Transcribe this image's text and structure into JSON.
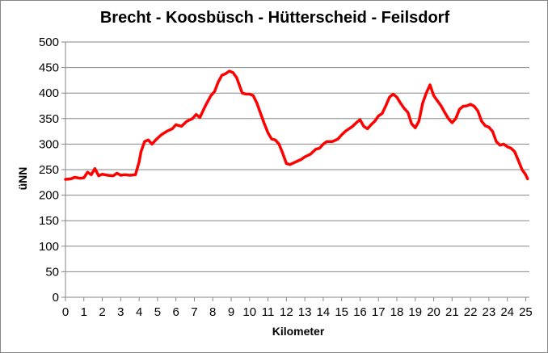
{
  "chart_data": {
    "type": "line",
    "title": "Brecht - Koosbüsch - Hütterscheid - Feilsdorf",
    "xlabel": "Kilometer",
    "ylabel": "üNN",
    "xlim": [
      0,
      25.2
    ],
    "ylim": [
      0,
      500
    ],
    "xticks": [
      0,
      1,
      2,
      3,
      4,
      5,
      6,
      7,
      8,
      9,
      10,
      11,
      12,
      13,
      14,
      15,
      16,
      17,
      18,
      19,
      20,
      21,
      22,
      23,
      24,
      25
    ],
    "yticks": [
      0,
      50,
      100,
      150,
      200,
      250,
      300,
      350,
      400,
      450,
      500
    ],
    "grid": "horizontal",
    "legend": "none",
    "series": [
      {
        "color": "#ff0000",
        "x": [
          0,
          0.3,
          0.5,
          0.8,
          1.0,
          1.2,
          1.4,
          1.6,
          1.8,
          2.0,
          2.3,
          2.6,
          2.8,
          3.0,
          3.2,
          3.5,
          3.8,
          4.0,
          4.1,
          4.3,
          4.5,
          4.7,
          4.9,
          5.2,
          5.5,
          5.8,
          6.0,
          6.3,
          6.6,
          6.9,
          7.1,
          7.3,
          7.6,
          7.9,
          8.1,
          8.3,
          8.5,
          8.7,
          8.9,
          9.1,
          9.3,
          9.6,
          9.8,
          10.0,
          10.2,
          10.4,
          10.6,
          10.8,
          11.0,
          11.2,
          11.4,
          11.6,
          11.8,
          12.0,
          12.2,
          12.5,
          12.8,
          13.0,
          13.3,
          13.6,
          13.8,
          14.0,
          14.2,
          14.5,
          14.8,
          15.0,
          15.2,
          15.4,
          15.6,
          15.8,
          16.0,
          16.2,
          16.4,
          16.6,
          16.8,
          17.0,
          17.2,
          17.4,
          17.6,
          17.8,
          18.0,
          18.2,
          18.4,
          18.6,
          18.8,
          19.0,
          19.2,
          19.4,
          19.6,
          19.8,
          20.0,
          20.2,
          20.4,
          20.6,
          20.8,
          21.0,
          21.2,
          21.4,
          21.6,
          21.8,
          22.0,
          22.2,
          22.4,
          22.6,
          22.8,
          23.0,
          23.2,
          23.4,
          23.6,
          23.8,
          24.0,
          24.2,
          24.4,
          24.6,
          24.8,
          25.0,
          25.1
        ],
        "y": [
          231,
          232,
          235,
          233,
          234,
          245,
          240,
          252,
          238,
          241,
          239,
          238,
          243,
          239,
          240,
          239,
          240,
          265,
          285,
          305,
          308,
          300,
          308,
          318,
          325,
          330,
          338,
          335,
          345,
          350,
          358,
          352,
          375,
          395,
          403,
          422,
          435,
          438,
          443,
          440,
          430,
          400,
          398,
          398,
          395,
          380,
          360,
          340,
          322,
          310,
          308,
          300,
          282,
          262,
          260,
          265,
          270,
          275,
          280,
          290,
          292,
          300,
          305,
          305,
          310,
          318,
          325,
          330,
          335,
          342,
          348,
          335,
          330,
          338,
          345,
          355,
          360,
          375,
          392,
          398,
          392,
          380,
          370,
          362,
          340,
          332,
          345,
          380,
          400,
          416,
          395,
          385,
          375,
          362,
          350,
          342,
          350,
          368,
          374,
          375,
          378,
          374,
          365,
          345,
          336,
          333,
          325,
          305,
          298,
          300,
          295,
          292,
          285,
          268,
          250,
          240,
          232
        ]
      }
    ]
  }
}
